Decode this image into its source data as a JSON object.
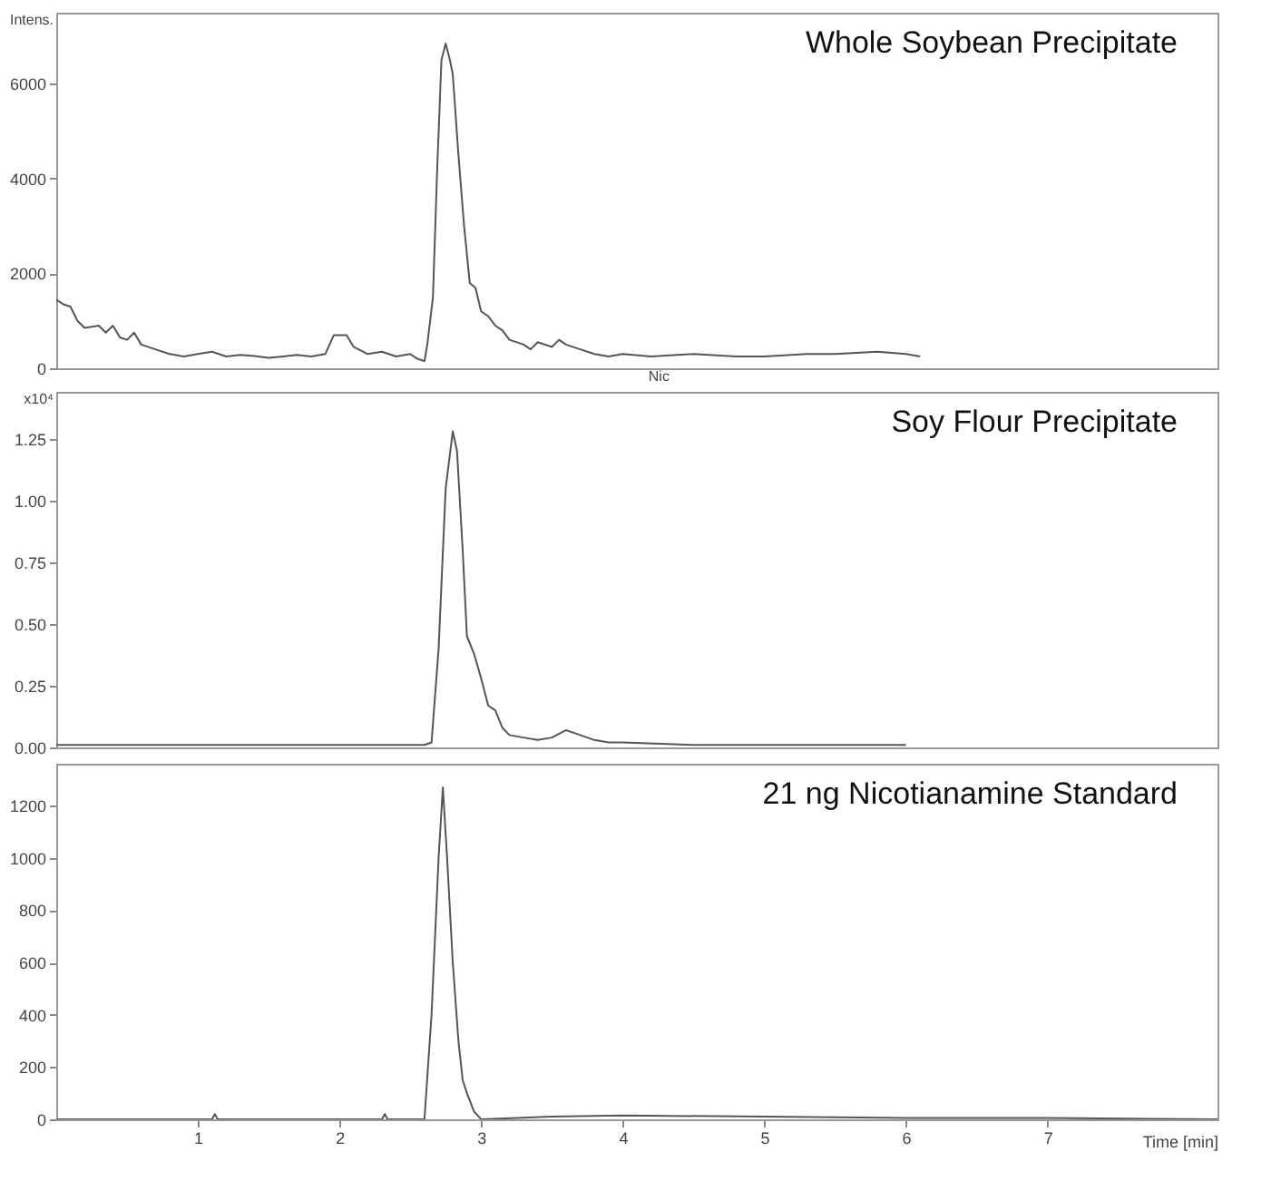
{
  "chart_data": [
    {
      "type": "line",
      "title": "Whole Soybean Precipitate",
      "ylabel": "Intens.",
      "xlim": [
        0,
        8.2
      ],
      "ylim": [
        0,
        7500
      ],
      "yticks": [
        0,
        2000,
        4000,
        6000
      ],
      "grid": false,
      "tick_labels": "y",
      "annotations": [
        "Nic"
      ],
      "x": [
        0,
        0.05,
        0.1,
        0.15,
        0.2,
        0.3,
        0.35,
        0.4,
        0.45,
        0.5,
        0.55,
        0.6,
        0.7,
        0.8,
        0.9,
        1.0,
        1.1,
        1.2,
        1.3,
        1.4,
        1.5,
        1.6,
        1.7,
        1.8,
        1.9,
        1.96,
        2.05,
        2.1,
        2.2,
        2.3,
        2.4,
        2.5,
        2.55,
        2.6,
        2.62,
        2.66,
        2.69,
        2.72,
        2.75,
        2.78,
        2.8,
        2.84,
        2.88,
        2.92,
        2.96,
        3.0,
        3.05,
        3.1,
        3.15,
        3.2,
        3.3,
        3.35,
        3.4,
        3.5,
        3.55,
        3.6,
        3.7,
        3.8,
        3.9,
        4.0,
        4.2,
        4.5,
        4.8,
        5.0,
        5.3,
        5.5,
        5.8,
        6.0,
        6.1
      ],
      "series": [
        {
          "color": "#555555",
          "values": [
            1450,
            1350,
            1300,
            1000,
            850,
            900,
            750,
            900,
            650,
            600,
            750,
            500,
            400,
            300,
            250,
            300,
            350,
            250,
            280,
            260,
            220,
            250,
            280,
            250,
            300,
            700,
            700,
            450,
            300,
            350,
            250,
            300,
            200,
            150,
            500,
            1500,
            4200,
            6500,
            6850,
            6500,
            6200,
            4500,
            3000,
            1800,
            1700,
            1200,
            1100,
            900,
            800,
            600,
            500,
            400,
            550,
            450,
            600,
            500,
            400,
            300,
            250,
            300,
            250,
            300,
            250,
            250,
            300,
            300,
            350,
            300,
            250
          ]
        }
      ]
    },
    {
      "type": "line",
      "title": "Soy Flour Precipitate",
      "ylabel": "x10⁴",
      "xlim": [
        0,
        8.2
      ],
      "ylim": [
        0,
        1.44
      ],
      "yticks": [
        {
          "value": 0,
          "label": "0.00"
        },
        {
          "value": 0.25,
          "label": "0.25"
        },
        {
          "value": 0.5,
          "label": "0.50"
        },
        {
          "value": 0.75,
          "label": "0.75"
        },
        {
          "value": 1,
          "label": "1.00"
        },
        {
          "value": 1.25,
          "label": "1.25"
        }
      ],
      "grid": false,
      "tick_labels": "y",
      "x": [
        0,
        0.5,
        1.0,
        1.5,
        2.0,
        2.5,
        2.6,
        2.65,
        2.7,
        2.75,
        2.8,
        2.83,
        2.87,
        2.9,
        2.95,
        3.0,
        3.05,
        3.1,
        3.15,
        3.2,
        3.3,
        3.4,
        3.5,
        3.6,
        3.7,
        3.8,
        3.9,
        4.0,
        4.5,
        5.0,
        5.5,
        6.0
      ],
      "series": [
        {
          "color": "#555555",
          "values": [
            0.01,
            0.01,
            0.01,
            0.01,
            0.01,
            0.01,
            0.01,
            0.02,
            0.4,
            1.05,
            1.28,
            1.2,
            0.8,
            0.45,
            0.38,
            0.28,
            0.17,
            0.15,
            0.08,
            0.05,
            0.04,
            0.03,
            0.04,
            0.07,
            0.05,
            0.03,
            0.02,
            0.02,
            0.01,
            0.01,
            0.01,
            0.01
          ]
        }
      ]
    },
    {
      "type": "line",
      "title": "21 ng Nicotianamine Standard",
      "xlabel": "Time [min]",
      "xlim": [
        0,
        8.2
      ],
      "xticks": [
        1,
        2,
        3,
        4,
        5,
        6,
        7
      ],
      "ylim": [
        0,
        1360
      ],
      "yticks": [
        0,
        200,
        400,
        600,
        800,
        1000,
        1200
      ],
      "grid": false,
      "x": [
        0,
        1.1,
        1.12,
        1.14,
        2.3,
        2.32,
        2.34,
        2.6,
        2.65,
        2.7,
        2.73,
        2.76,
        2.8,
        2.84,
        2.87,
        2.9,
        2.95,
        3.0,
        3.5,
        4.0,
        5.0,
        6.0,
        7.0,
        8.2
      ],
      "series": [
        {
          "color": "#555555",
          "values": [
            0,
            0,
            20,
            0,
            0,
            20,
            0,
            0,
            400,
            1000,
            1270,
            1000,
            600,
            300,
            150,
            100,
            30,
            0,
            10,
            15,
            10,
            5,
            5,
            0
          ]
        }
      ]
    }
  ]
}
